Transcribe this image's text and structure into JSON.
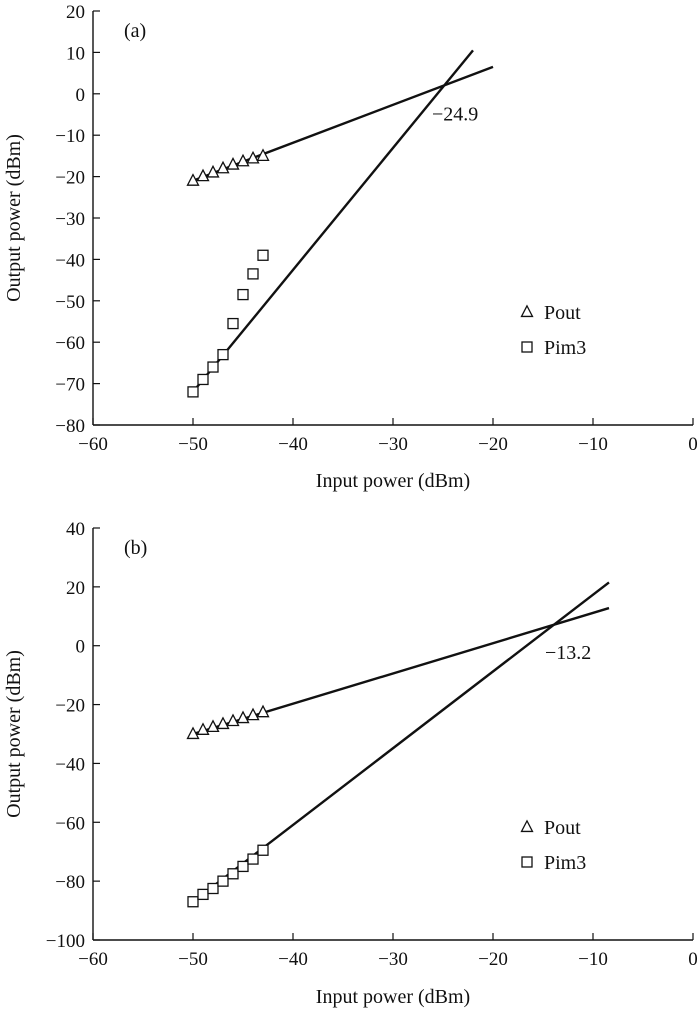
{
  "chart_data": [
    {
      "type": "scatter",
      "panel_label": "(a)",
      "xlabel": "Input power (dBm)",
      "ylabel": "Output power (dBm)",
      "xlim": [
        -60,
        0
      ],
      "ylim": [
        -80,
        20
      ],
      "x_ticks": [
        -60,
        -50,
        -40,
        -30,
        -20,
        -10,
        0
      ],
      "y_ticks": [
        -80,
        -70,
        -60,
        -50,
        -40,
        -30,
        -20,
        -10,
        0,
        10,
        20
      ],
      "x_tick_labels": [
        "−60",
        "−50",
        "−40",
        "−30",
        "−20",
        "−10",
        "0"
      ],
      "y_tick_labels": [
        "−80",
        "−70",
        "−60",
        "−50",
        "−40",
        "−30",
        "−20",
        "−10",
        "0",
        "10",
        "20"
      ],
      "grid": false,
      "legend_position": "lower-right",
      "series": [
        {
          "name": "Pout",
          "marker": "triangle",
          "x": [
            -50,
            -49,
            -48,
            -47,
            -46,
            -45,
            -44,
            -43
          ],
          "y": [
            -21,
            -19.9,
            -19,
            -18,
            -17.1,
            -16.3,
            -15.6,
            -15
          ]
        },
        {
          "name": "Pim3",
          "marker": "square",
          "x": [
            -50,
            -49,
            -48,
            -47,
            -46,
            -45,
            -44,
            -43
          ],
          "y": [
            -72,
            -69,
            -66,
            -63,
            -55.5,
            -48.5,
            -43.5,
            -39
          ]
        }
      ],
      "fit_lines": [
        {
          "series": "Pout",
          "x": [
            -50,
            -20
          ],
          "y": [
            -21,
            6.5
          ]
        },
        {
          "series": "Pim3",
          "x": [
            -50,
            -22
          ],
          "y": [
            -72,
            10.5
          ]
        }
      ],
      "annotations": [
        {
          "text": "−24.9",
          "x": -26.1,
          "y": -6.5
        }
      ]
    },
    {
      "type": "scatter",
      "panel_label": "(b)",
      "xlabel": "Input power (dBm)",
      "ylabel": "Output power (dBm)",
      "xlim": [
        -60,
        0
      ],
      "ylim": [
        -100,
        40
      ],
      "x_ticks": [
        -60,
        -50,
        -40,
        -30,
        -20,
        -10,
        0
      ],
      "y_ticks": [
        -100,
        -80,
        -60,
        -40,
        -20,
        0,
        20,
        40
      ],
      "x_tick_labels": [
        "−60",
        "−50",
        "−40",
        "−30",
        "−20",
        "−10",
        "0"
      ],
      "y_tick_labels": [
        "−100",
        "−80",
        "−60",
        "−40",
        "−20",
        "0",
        "20",
        "40"
      ],
      "grid": false,
      "legend_position": "lower-right",
      "series": [
        {
          "name": "Pout",
          "marker": "triangle",
          "x": [
            -50,
            -49,
            -48,
            -47,
            -46,
            -45,
            -44,
            -43
          ],
          "y": [
            -30,
            -28.6,
            -27.6,
            -26.6,
            -25.6,
            -24.6,
            -23.6,
            -22.6
          ]
        },
        {
          "name": "Pim3",
          "marker": "square",
          "x": [
            -50,
            -49,
            -48,
            -47,
            -46,
            -45,
            -44,
            -43
          ],
          "y": [
            -87,
            -84.5,
            -82.5,
            -80,
            -77.5,
            -75,
            -72.5,
            -69.5
          ]
        }
      ],
      "fit_lines": [
        {
          "series": "Pout",
          "x": [
            -50,
            -8.4
          ],
          "y": [
            -30,
            12.8
          ]
        },
        {
          "series": "Pim3",
          "x": [
            -50,
            -8.4
          ],
          "y": [
            -87,
            21.5
          ]
        }
      ],
      "annotations": [
        {
          "text": "−13.2",
          "x": -14.8,
          "y": -4.5
        }
      ]
    }
  ]
}
